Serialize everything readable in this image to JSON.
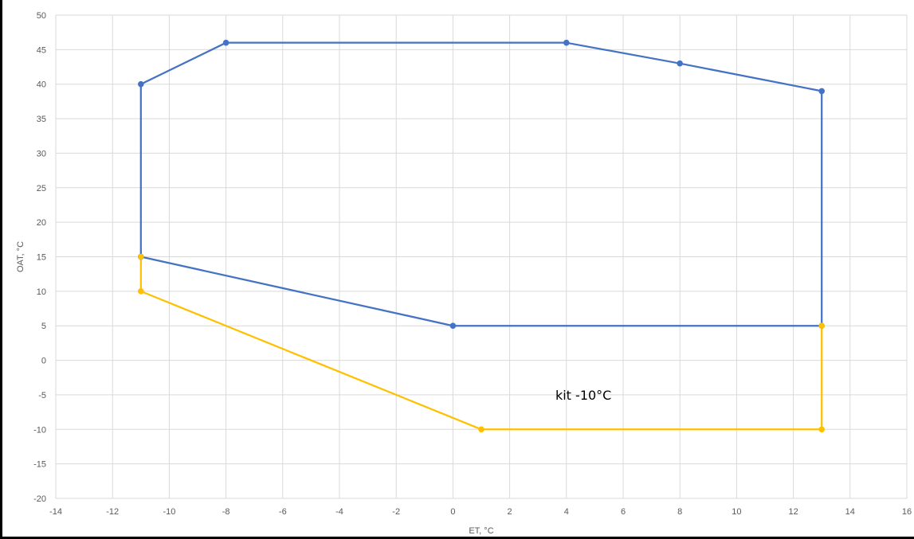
{
  "chart_data": {
    "type": "scatter",
    "title": "",
    "xlabel": "ET, °C",
    "ylabel": "OAT, °C",
    "xlim": [
      -14,
      16
    ],
    "ylim": [
      -20,
      50
    ],
    "xticks": [
      -14,
      -12,
      -10,
      -8,
      -6,
      -4,
      -2,
      0,
      2,
      4,
      6,
      8,
      10,
      12,
      14,
      16
    ],
    "yticks": [
      -20,
      -15,
      -10,
      -5,
      0,
      5,
      10,
      15,
      20,
      25,
      30,
      35,
      40,
      45,
      50
    ],
    "grid": true,
    "legend": "none",
    "series": [
      {
        "color": "#4472C4",
        "points": [
          [
            -11,
            15
          ],
          [
            -11,
            40
          ],
          [
            -8,
            46
          ],
          [
            4,
            46
          ],
          [
            8,
            43
          ],
          [
            13,
            39
          ],
          [
            13,
            5
          ],
          [
            0,
            5
          ],
          [
            -11,
            15
          ]
        ]
      },
      {
        "color": "#FFC000",
        "points": [
          [
            -11,
            15
          ],
          [
            -11,
            10
          ],
          [
            1,
            -10
          ],
          [
            13,
            -10
          ],
          [
            13,
            5
          ]
        ]
      }
    ],
    "annotations": [
      {
        "text": "kit -10°C",
        "x": 4.6,
        "y": -5
      }
    ]
  }
}
